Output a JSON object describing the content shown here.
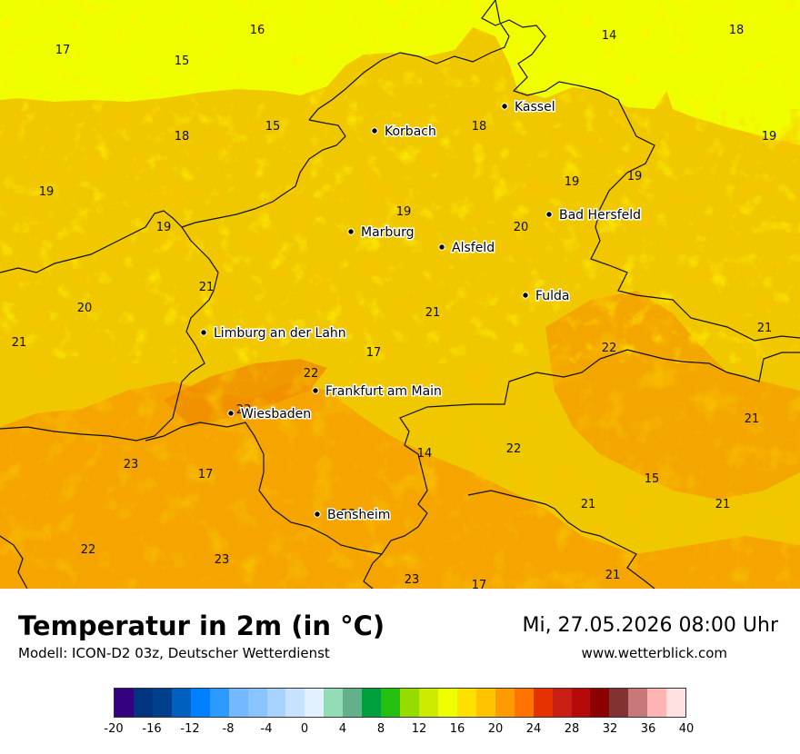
{
  "title": "Temperatur in 2m (in °C)",
  "model": "Modell: ICON-D2 03z, Deutscher Wetterdienst",
  "datetime": "Mi, 27.05.2026 08:00 Uhr",
  "website": "www.wetterblick.com",
  "cities": [
    {
      "name": "Kassel"
    },
    {
      "name": "Korbach"
    },
    {
      "name": "Bad Hersfeld"
    },
    {
      "name": "Marburg"
    },
    {
      "name": "Alsfeld"
    },
    {
      "name": "Fulda"
    },
    {
      "name": "Limburg an der Lahn"
    },
    {
      "name": "Frankfurt am Main"
    },
    {
      "name": "Wiesbaden"
    },
    {
      "name": "Bensheim"
    }
  ],
  "temperature_labels": [
    "16",
    "17",
    "15",
    "14",
    "18",
    "15",
    "18",
    "18",
    "19",
    "19",
    "19",
    "19",
    "19",
    "19",
    "20",
    "21",
    "20",
    "21",
    "21",
    "21",
    "17",
    "22",
    "22",
    "21",
    "23",
    "14",
    "22",
    "23",
    "17",
    "15",
    "21",
    "21",
    "23",
    "22",
    "23",
    "23",
    "17",
    "21"
  ],
  "legend": {
    "colors": [
      "#33007f",
      "#00347f",
      "#003f8c",
      "#0060c0",
      "#0080ff",
      "#2c9bff",
      "#74b8ff",
      "#8ac4ff",
      "#a8d3ff",
      "#c6e2ff",
      "#e2f0ff",
      "#93dcb5",
      "#63b08c",
      "#00a03c",
      "#23c00f",
      "#96dc00",
      "#cceb00",
      "#f0ff00",
      "#ffe100",
      "#ffc300",
      "#ff9b00",
      "#ff7300",
      "#e63200",
      "#c81e14",
      "#b40a0a",
      "#8c0000",
      "#823232",
      "#c87878",
      "#ffb4b4",
      "#ffe1e1"
    ],
    "ticks": [
      "-20",
      "-16",
      "-12",
      "-8",
      "-4",
      "0",
      "4",
      "8",
      "12",
      "16",
      "20",
      "24",
      "28",
      "32",
      "36",
      "40"
    ]
  },
  "palette": {
    "base": "#f0c800",
    "light": "#ffe100",
    "warm": "#f59b00",
    "hot": "#f08c00",
    "yellow": "#f0ff00"
  }
}
